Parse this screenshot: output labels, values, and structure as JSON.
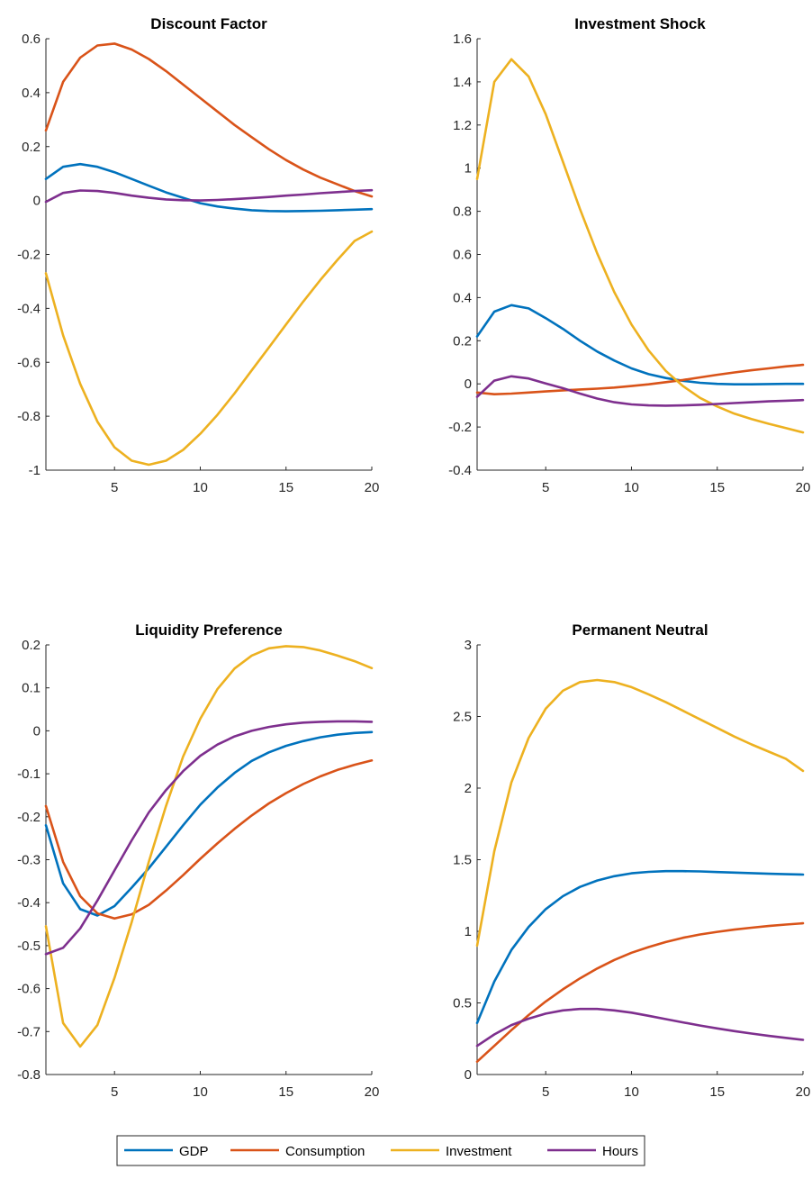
{
  "colors": {
    "GDP": "#0072BD",
    "Consumption": "#D95319",
    "Investment": "#EDB120",
    "Hours": "#7E2F8E"
  },
  "legend": {
    "entries": [
      "GDP",
      "Consumption",
      "Investment",
      "Hours"
    ],
    "placement": "bottom-center"
  },
  "chart_data": [
    {
      "type": "line",
      "title": "Discount Factor",
      "xlim": [
        1,
        20
      ],
      "ylim": [
        -1,
        0.6
      ],
      "xticks": [
        5,
        10,
        15,
        20
      ],
      "yticks": [
        -1,
        -0.8,
        -0.6,
        -0.4,
        -0.2,
        0,
        0.2,
        0.4,
        0.6
      ],
      "ytick_labels": [
        "-1",
        "-0.8",
        "-0.6",
        "-0.4",
        "-0.2",
        "0",
        "0.2",
        "0.4",
        "0.6"
      ],
      "x": [
        1,
        2,
        3,
        4,
        5,
        6,
        7,
        8,
        9,
        10,
        11,
        12,
        13,
        14,
        15,
        16,
        17,
        18,
        19,
        20
      ],
      "series": [
        {
          "name": "GDP",
          "values": [
            0.08,
            0.125,
            0.135,
            0.125,
            0.105,
            0.08,
            0.055,
            0.03,
            0.01,
            -0.01,
            -0.022,
            -0.03,
            -0.036,
            -0.039,
            -0.04,
            -0.039,
            -0.038,
            -0.036,
            -0.034,
            -0.032
          ]
        },
        {
          "name": "Consumption",
          "values": [
            0.26,
            0.44,
            0.53,
            0.575,
            0.582,
            0.56,
            0.525,
            0.48,
            0.43,
            0.38,
            0.33,
            0.28,
            0.235,
            0.19,
            0.15,
            0.115,
            0.085,
            0.06,
            0.035,
            0.015
          ]
        },
        {
          "name": "Investment",
          "values": [
            -0.27,
            -0.5,
            -0.68,
            -0.82,
            -0.915,
            -0.965,
            -0.98,
            -0.965,
            -0.925,
            -0.865,
            -0.795,
            -0.715,
            -0.63,
            -0.545,
            -0.46,
            -0.375,
            -0.295,
            -0.22,
            -0.15,
            -0.115
          ]
        },
        {
          "name": "Hours",
          "values": [
            -0.005,
            0.028,
            0.037,
            0.035,
            0.028,
            0.018,
            0.01,
            0.004,
            0.001,
            0.0,
            0.002,
            0.005,
            0.009,
            0.013,
            0.018,
            0.022,
            0.027,
            0.031,
            0.035,
            0.038
          ]
        }
      ]
    },
    {
      "type": "line",
      "title": "Investment Shock",
      "xlim": [
        1,
        20
      ],
      "ylim": [
        -0.4,
        1.6
      ],
      "xticks": [
        5,
        10,
        15,
        20
      ],
      "yticks": [
        -0.4,
        -0.2,
        0,
        0.2,
        0.4,
        0.6,
        0.8,
        1,
        1.2,
        1.4,
        1.6
      ],
      "ytick_labels": [
        "-0.4",
        "-0.2",
        "0",
        "0.2",
        "0.4",
        "0.6",
        "0.8",
        "1",
        "1.2",
        "1.4",
        "1.6"
      ],
      "x": [
        1,
        2,
        3,
        4,
        5,
        6,
        7,
        8,
        9,
        10,
        11,
        12,
        13,
        14,
        15,
        16,
        17,
        18,
        19,
        20
      ],
      "series": [
        {
          "name": "GDP",
          "values": [
            0.22,
            0.335,
            0.365,
            0.35,
            0.305,
            0.255,
            0.2,
            0.15,
            0.108,
            0.072,
            0.045,
            0.027,
            0.014,
            0.005,
            0.0,
            -0.002,
            -0.002,
            -0.001,
            0.0,
            0.0
          ]
        },
        {
          "name": "Consumption",
          "values": [
            -0.04,
            -0.048,
            -0.045,
            -0.04,
            -0.035,
            -0.03,
            -0.026,
            -0.022,
            -0.017,
            -0.01,
            -0.002,
            0.008,
            0.018,
            0.03,
            0.042,
            0.053,
            0.063,
            0.072,
            0.081,
            0.088
          ]
        },
        {
          "name": "Investment",
          "values": [
            0.95,
            1.4,
            1.505,
            1.425,
            1.25,
            1.03,
            0.81,
            0.605,
            0.425,
            0.275,
            0.155,
            0.06,
            -0.01,
            -0.065,
            -0.105,
            -0.138,
            -0.163,
            -0.185,
            -0.205,
            -0.225
          ]
        },
        {
          "name": "Hours",
          "values": [
            -0.06,
            0.015,
            0.035,
            0.025,
            0.002,
            -0.02,
            -0.045,
            -0.068,
            -0.085,
            -0.095,
            -0.1,
            -0.101,
            -0.1,
            -0.097,
            -0.093,
            -0.089,
            -0.085,
            -0.081,
            -0.078,
            -0.075
          ]
        }
      ]
    },
    {
      "type": "line",
      "title": "Liquidity Preference",
      "xlim": [
        1,
        20
      ],
      "ylim": [
        -0.8,
        0.2
      ],
      "xticks": [
        5,
        10,
        15,
        20
      ],
      "yticks": [
        -0.8,
        -0.7,
        -0.6,
        -0.5,
        -0.4,
        -0.3,
        -0.2,
        -0.1,
        0,
        0.1,
        0.2
      ],
      "ytick_labels": [
        "-0.8",
        "-0.7",
        "-0.6",
        "-0.5",
        "-0.4",
        "-0.3",
        "-0.2",
        "-0.1",
        "0",
        "0.1",
        "0.2"
      ],
      "x": [
        1,
        2,
        3,
        4,
        5,
        6,
        7,
        8,
        9,
        10,
        11,
        12,
        13,
        14,
        15,
        16,
        17,
        18,
        19,
        20
      ],
      "series": [
        {
          "name": "GDP",
          "values": [
            -0.22,
            -0.355,
            -0.415,
            -0.43,
            -0.408,
            -0.365,
            -0.32,
            -0.27,
            -0.22,
            -0.172,
            -0.132,
            -0.098,
            -0.07,
            -0.05,
            -0.035,
            -0.024,
            -0.015,
            -0.009,
            -0.005,
            -0.003
          ]
        },
        {
          "name": "Consumption",
          "values": [
            -0.175,
            -0.305,
            -0.385,
            -0.425,
            -0.437,
            -0.427,
            -0.405,
            -0.372,
            -0.336,
            -0.298,
            -0.262,
            -0.228,
            -0.197,
            -0.169,
            -0.145,
            -0.124,
            -0.106,
            -0.091,
            -0.079,
            -0.069
          ]
        },
        {
          "name": "Investment",
          "values": [
            -0.455,
            -0.68,
            -0.735,
            -0.685,
            -0.575,
            -0.445,
            -0.305,
            -0.175,
            -0.06,
            0.028,
            0.097,
            0.145,
            0.175,
            0.192,
            0.197,
            0.195,
            0.187,
            0.175,
            0.162,
            0.146
          ]
        },
        {
          "name": "Hours",
          "values": [
            -0.52,
            -0.505,
            -0.46,
            -0.395,
            -0.325,
            -0.255,
            -0.19,
            -0.138,
            -0.094,
            -0.058,
            -0.032,
            -0.013,
            0.0,
            0.009,
            0.015,
            0.019,
            0.021,
            0.022,
            0.022,
            0.021
          ]
        }
      ]
    },
    {
      "type": "line",
      "title": "Permanent Neutral",
      "xlim": [
        1,
        20
      ],
      "ylim": [
        0,
        3
      ],
      "xticks": [
        5,
        10,
        15,
        20
      ],
      "yticks": [
        0,
        0.5,
        1,
        1.5,
        2,
        2.5,
        3
      ],
      "ytick_labels": [
        "0",
        "0.5",
        "1",
        "1.5",
        "2",
        "2.5",
        "3"
      ],
      "x": [
        1,
        2,
        3,
        4,
        5,
        6,
        7,
        8,
        9,
        10,
        11,
        12,
        13,
        14,
        15,
        16,
        17,
        18,
        19,
        20
      ],
      "series": [
        {
          "name": "GDP",
          "values": [
            0.36,
            0.65,
            0.87,
            1.03,
            1.155,
            1.245,
            1.31,
            1.355,
            1.385,
            1.405,
            1.415,
            1.42,
            1.42,
            1.418,
            1.414,
            1.41,
            1.406,
            1.402,
            1.399,
            1.396
          ]
        },
        {
          "name": "Consumption",
          "values": [
            0.09,
            0.2,
            0.31,
            0.415,
            0.51,
            0.595,
            0.672,
            0.74,
            0.8,
            0.85,
            0.89,
            0.925,
            0.955,
            0.978,
            0.996,
            1.012,
            1.025,
            1.037,
            1.047,
            1.056
          ]
        },
        {
          "name": "Investment",
          "values": [
            0.9,
            1.56,
            2.04,
            2.35,
            2.555,
            2.68,
            2.74,
            2.755,
            2.74,
            2.705,
            2.655,
            2.6,
            2.54,
            2.48,
            2.42,
            2.36,
            2.305,
            2.255,
            2.205,
            2.12
          ]
        },
        {
          "name": "Hours",
          "values": [
            0.2,
            0.28,
            0.345,
            0.39,
            0.425,
            0.448,
            0.458,
            0.458,
            0.448,
            0.432,
            0.41,
            0.387,
            0.364,
            0.342,
            0.322,
            0.303,
            0.286,
            0.27,
            0.256,
            0.242
          ]
        }
      ]
    }
  ]
}
